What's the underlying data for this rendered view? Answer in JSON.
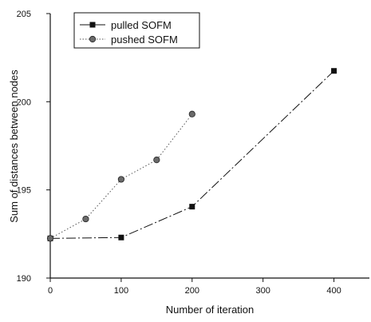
{
  "chart_data": {
    "type": "line",
    "xlabel": "Number of iteration",
    "ylabel": "Sum of distances between nodes",
    "xlim": [
      0,
      450
    ],
    "ylim": [
      190,
      205
    ],
    "xticks": [
      "0",
      "100",
      "200",
      "300",
      "400"
    ],
    "xtick_values": [
      0,
      100,
      200,
      300,
      400
    ],
    "yticks": [
      "190",
      "195",
      "200",
      "205"
    ],
    "ytick_values": [
      190,
      195,
      200,
      205
    ],
    "grid": false,
    "legend_position": "top-left",
    "series": [
      {
        "name": "pulled SOFM",
        "marker": "square",
        "line_style": "dash-dot",
        "color": "#111111",
        "x": [
          0,
          100,
          200,
          400
        ],
        "y": [
          192.25,
          192.3,
          194.05,
          201.75
        ]
      },
      {
        "name": "pushed SOFM",
        "marker": "circle",
        "line_style": "dotted",
        "color": "#555555",
        "x": [
          0,
          50,
          100,
          150,
          200
        ],
        "y": [
          192.25,
          193.35,
          195.6,
          196.7,
          199.3
        ]
      }
    ]
  }
}
